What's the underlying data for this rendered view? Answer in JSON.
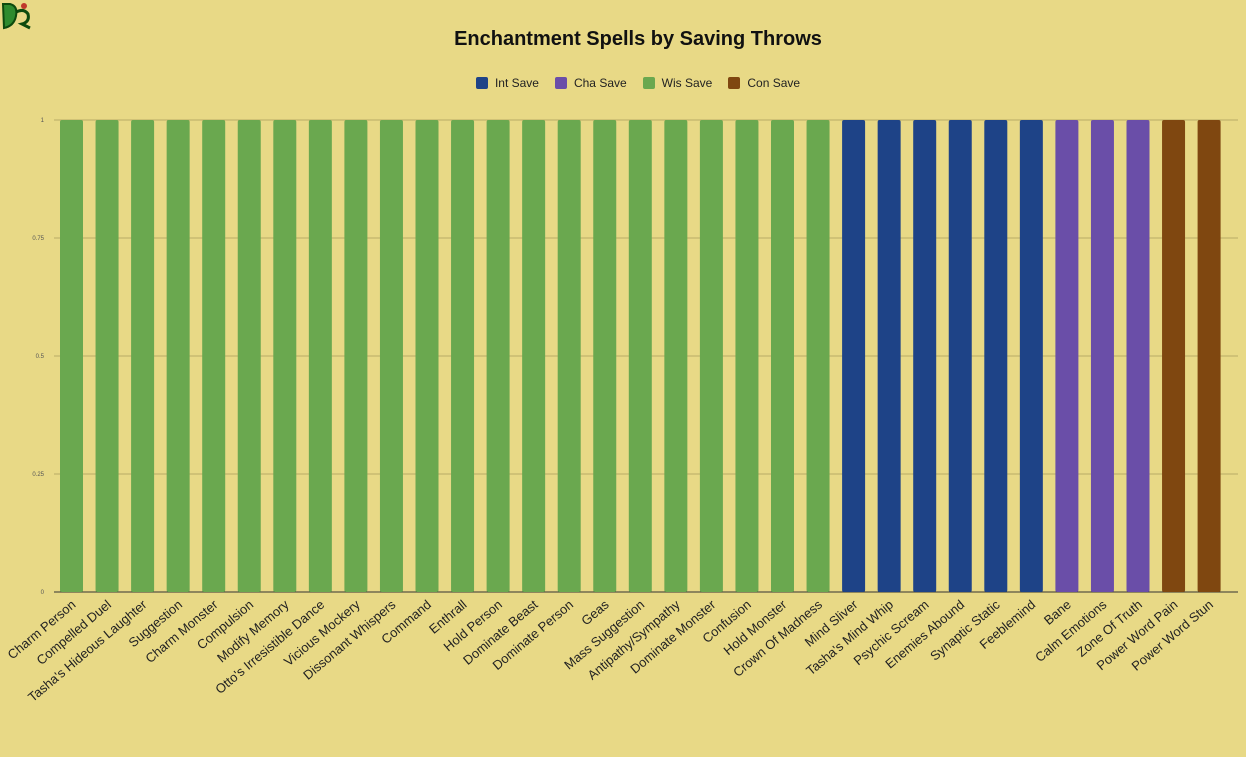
{
  "chart_data": {
    "type": "bar",
    "title": "Enchantment Spells by Saving Throws",
    "xlabel": "",
    "ylabel": "",
    "ylim": [
      0,
      1
    ],
    "yticks": [
      "0",
      "0.25",
      "0.5",
      "0.75",
      "1"
    ],
    "grid": true,
    "legend_position": "top",
    "series": [
      {
        "name": "Int Save",
        "color": "#1e4387"
      },
      {
        "name": "Cha Save",
        "color": "#6a4ea8"
      },
      {
        "name": "Wis Save",
        "color": "#6aa84f"
      },
      {
        "name": "Con Save",
        "color": "#7f4710"
      }
    ],
    "categories": [
      "Charm Person",
      "Compelled Duel",
      "Tasha's Hideous Laughter",
      "Suggestion",
      "Charm Monster",
      "Compulsion",
      "Modify Memory",
      "Otto's Irresistible Dance",
      "Vicious Mockery",
      "Dissonant Whispers",
      "Command",
      "Enthrall",
      "Hold Person",
      "Dominate Beast",
      "Dominate Person",
      "Geas",
      "Mass Suggestion",
      "Antipathy/Sympathy",
      "Dominate Monster",
      "Confusion",
      "Hold Monster",
      "Crown Of Madness",
      "Mind Sliver",
      "Tasha's Mind Whip",
      "Psychic Scream",
      "Enemies Abound",
      "Synaptic Static",
      "Feeblemind",
      "Bane",
      "Calm Emotions",
      "Zone Of Truth",
      "Power Word Pain",
      "Power Word Stun"
    ],
    "bar_series": [
      "Wis Save",
      "Wis Save",
      "Wis Save",
      "Wis Save",
      "Wis Save",
      "Wis Save",
      "Wis Save",
      "Wis Save",
      "Wis Save",
      "Wis Save",
      "Wis Save",
      "Wis Save",
      "Wis Save",
      "Wis Save",
      "Wis Save",
      "Wis Save",
      "Wis Save",
      "Wis Save",
      "Wis Save",
      "Wis Save",
      "Wis Save",
      "Wis Save",
      "Int Save",
      "Int Save",
      "Int Save",
      "Int Save",
      "Int Save",
      "Int Save",
      "Cha Save",
      "Cha Save",
      "Cha Save",
      "Con Save",
      "Con Save"
    ],
    "values": [
      1,
      1,
      1,
      1,
      1,
      1,
      1,
      1,
      1,
      1,
      1,
      1,
      1,
      1,
      1,
      1,
      1,
      1,
      1,
      1,
      1,
      1,
      1,
      1,
      1,
      1,
      1,
      1,
      1,
      1,
      1,
      1,
      1
    ]
  }
}
